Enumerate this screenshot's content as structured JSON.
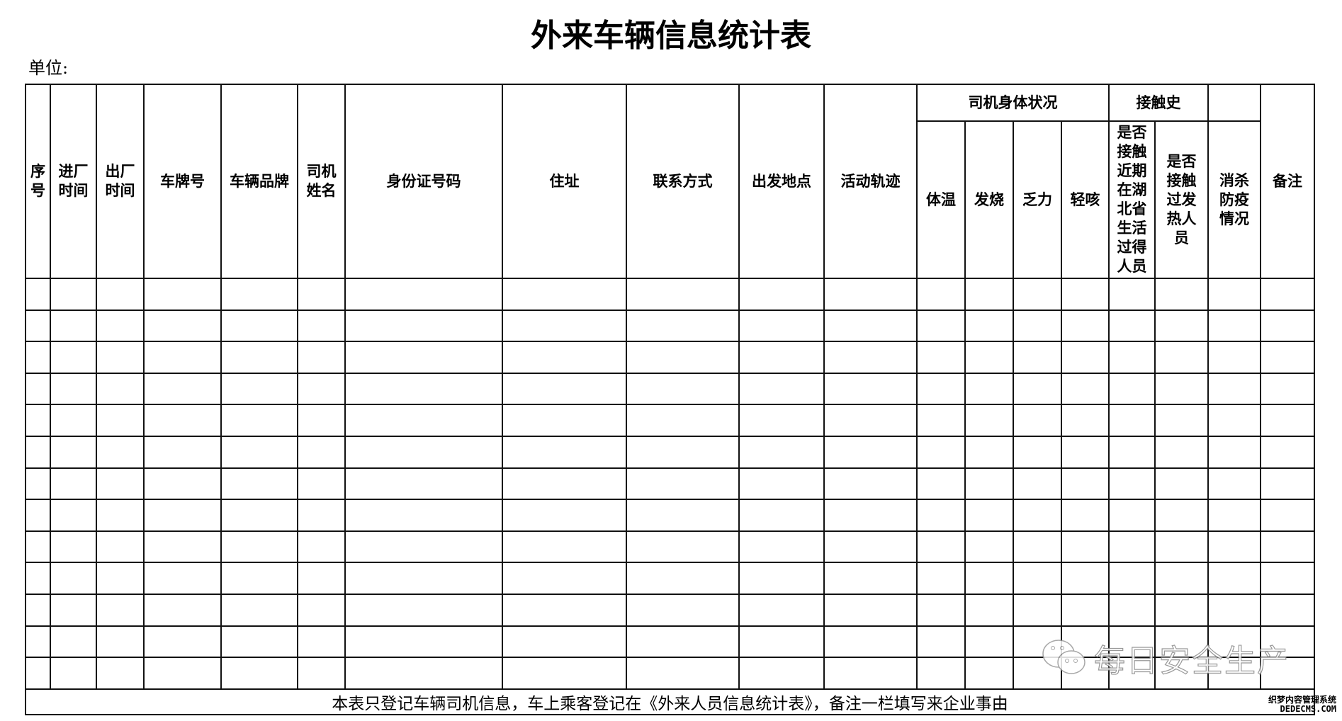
{
  "title": "外来车辆信息统计表",
  "unit_label": "单位:",
  "columns": [
    "序号",
    "进厂时间",
    "出厂时间",
    "车牌号",
    "车辆品牌",
    "司机姓名",
    "身份证号码",
    "住址",
    "联系方式",
    "出发地点",
    "活动轨迹"
  ],
  "group_health": {
    "label": "司机身体状况",
    "items": [
      "体温",
      "发烧",
      "乏力",
      "轻咳"
    ]
  },
  "group_contact": {
    "label": "接触史",
    "items": [
      "是否接触近期在湖北省生活过得人员",
      "是否接触过发热人员"
    ]
  },
  "disinfection": "消杀防疫情况",
  "remarks": "备注",
  "row_count": 13,
  "footer": "本表只登记车辆司机信息，车上乘客登记在《外来人员信息统计表》，备注一栏填写来企业事由",
  "watermark": {
    "text": "每日安全生产",
    "icon": "wechat-icon"
  },
  "site_mark": {
    "line1": "织梦内容管理系统",
    "line2": "DEDECMS.COM"
  }
}
